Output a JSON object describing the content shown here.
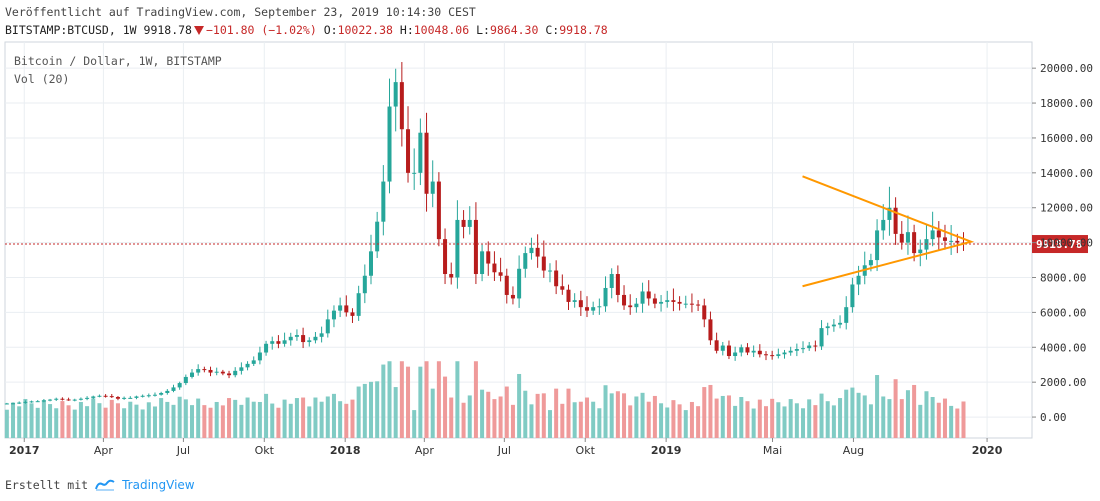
{
  "header": {
    "published": "Veröffentlicht auf TradingView.com, September 23, 2019 10:14:30 CEST",
    "symbol": "BITSTAMP:BTCUSD,",
    "interval": "1W",
    "last": "9918.78",
    "change": "−101.80 (−1.02%)",
    "o_label": "O:",
    "o_value": "10022.38",
    "h_label": "H:",
    "h_value": "10048.06",
    "l_label": "L:",
    "l_value": "9864.30",
    "c_label": "C:",
    "c_value": "9918.78"
  },
  "legend": {
    "series": "Bitcoin / Dollar, 1W, BITSTAMP",
    "volume": "Vol (20)"
  },
  "footer": {
    "created": "Erstellt mit",
    "brand": "TradingView"
  },
  "colors": {
    "up": "#26a69a",
    "down": "#b71c1c",
    "vol_up": "#80cbc4",
    "vol_down": "#ef9a9a",
    "price_line": "#c62828",
    "triangle": "#ff9800",
    "grid": "#eaeef2"
  },
  "chart_data": {
    "type": "candlestick",
    "symbol": "BITSTAMP:BTCUSD",
    "interval": "1W",
    "y_axis": {
      "ticks": [
        0,
        2000,
        4000,
        6000,
        8000,
        10000,
        12000,
        14000,
        16000,
        18000,
        20000
      ],
      "labels": [
        "0.00",
        "2000.00",
        "4000.00",
        "6000.00",
        "8000.00",
        "10000.00",
        "12000.00",
        "14000.00",
        "16000.00",
        "18000.00",
        "20000.00"
      ],
      "range": [
        -1200,
        21500
      ]
    },
    "x_axis": {
      "ticks": [
        {
          "t": 2017.0,
          "label": "2017",
          "bold": true
        },
        {
          "t": 2017.2466,
          "label": "Apr"
        },
        {
          "t": 2017.4959,
          "label": "Jul"
        },
        {
          "t": 2017.7479,
          "label": "Okt"
        },
        {
          "t": 2018.0,
          "label": "2018",
          "bold": true
        },
        {
          "t": 2018.2466,
          "label": "Apr"
        },
        {
          "t": 2018.4959,
          "label": "Jul"
        },
        {
          "t": 2018.7479,
          "label": "Okt"
        },
        {
          "t": 2019.0,
          "label": "2019",
          "bold": true
        },
        {
          "t": 2019.3315,
          "label": "Mai"
        },
        {
          "t": 2019.5836,
          "label": "Aug"
        },
        {
          "t": 2020.0,
          "label": "2020",
          "bold": true
        }
      ],
      "range": [
        2016.94,
        2020.14
      ]
    },
    "current_price": {
      "value": 9918.78,
      "label": "9918.78"
    },
    "closes": [
      780,
      790,
      830,
      870,
      900,
      910,
      950,
      1000,
      1050,
      1010,
      970,
      1000,
      1050,
      1100,
      1180,
      1220,
      1200,
      1150,
      1050,
      1100,
      1100,
      1180,
      1220,
      1250,
      1280,
      1380,
      1500,
      1700,
      1950,
      2300,
      2550,
      2750,
      2700,
      2550,
      2600,
      2500,
      2400,
      2650,
      2850,
      3050,
      3250,
      3700,
      4200,
      4350,
      4200,
      4400,
      4600,
      4700,
      4300,
      4400,
      4600,
      4800,
      5600,
      6100,
      6400,
      6000,
      5800,
      7100,
      8100,
      9500,
      11200,
      13500,
      17800,
      19200,
      16500,
      14000,
      14000,
      16300,
      12800,
      13500,
      10200,
      8200,
      8000,
      11300,
      10900,
      11300,
      8200,
      9500,
      8800,
      8300,
      8100,
      7000,
      6800,
      8500,
      9400,
      9700,
      9200,
      8400,
      8400,
      7500,
      7300,
      6600,
      6700,
      6300,
      6100,
      6300,
      6350,
      7400,
      8200,
      7000,
      6400,
      6300,
      6500,
      7200,
      6800,
      6500,
      6600,
      6700,
      6600,
      6500,
      6500,
      6450,
      6400,
      5600,
      4400,
      3800,
      4100,
      3500,
      3700,
      4000,
      3700,
      3800,
      3600,
      3550,
      3500,
      3600,
      3700,
      3800,
      3900,
      3950,
      4100,
      4050,
      5100,
      5200,
      5300,
      5400,
      6300,
      7600,
      8100,
      8700,
      9000,
      10700,
      11300,
      12000,
      10500,
      10000,
      10600,
      9400,
      9600,
      10200,
      10700,
      10300,
      10100,
      10100,
      10000,
      9918.78
    ],
    "markers": [
      {
        "t": 2017.0,
        "label": "2017"
      },
      {
        "t": 2018.0,
        "label": "2018"
      },
      {
        "t": 2019.0,
        "label": "2019"
      }
    ],
    "volume_scale": {
      "max_label_value": 2000,
      "note": "volume histogram in units of the left pane scale"
    },
    "triangle_pattern": {
      "apex": [
        2019.95,
        10050
      ],
      "upper_start": [
        2019.425,
        13800
      ],
      "lower_start": [
        2019.425,
        7500
      ]
    }
  }
}
